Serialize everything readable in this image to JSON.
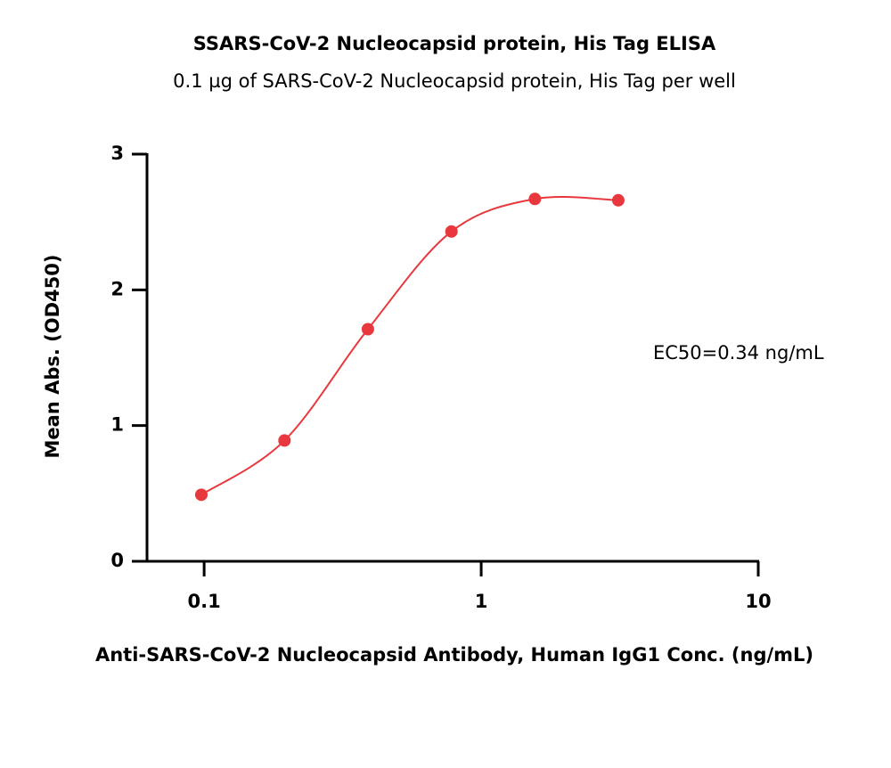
{
  "chart_data": {
    "type": "scatter",
    "title": "SSARS-CoV-2 Nucleocapsid protein, His Tag ELISA",
    "subtitle": "0.1 µg of SARS-CoV-2 Nucleocapsid protein, His Tag per well",
    "x_label": "Anti-SARS-CoV-2 Nucleocapsid Antibody, Human IgG1 Conc. (ng/mL)",
    "y_label": "Mean Abs. (OD450)",
    "annotation": "EC50=0.34 ng/mL",
    "x_scale": "log",
    "xlim": [
      0.0622,
      10
    ],
    "xticks": [
      0.1,
      1,
      10
    ],
    "ylim": [
      0,
      3
    ],
    "yticks": [
      0,
      1,
      2,
      3
    ],
    "curve": "smooth",
    "series": [
      {
        "color": "#e8383d",
        "x": [
          0.0977,
          0.195,
          0.39,
          0.781,
          1.5625,
          3.125
        ],
        "values": [
          0.49,
          0.89,
          1.71,
          2.43,
          2.67,
          2.66
        ]
      }
    ]
  }
}
